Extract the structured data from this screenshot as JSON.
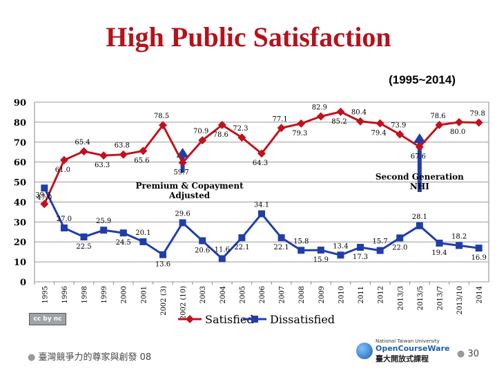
{
  "slide": {
    "title": "High Public Satisfaction",
    "subtitle": "(1995~2014)",
    "footer_text": "臺灣競爭力的尊家與創發 08",
    "page_number": "30",
    "logo_top": "National Taiwan University",
    "logo_mid": "OpenCourseWare",
    "logo_bottom": "臺大開放式課程",
    "license_badge": "cc by nc sa"
  },
  "colors": {
    "satisfied": "#c0121e",
    "dissatisfied": "#1f3ea8",
    "title": "#b5121b",
    "annotation": "#1f3ea8"
  },
  "chart_data": {
    "type": "line",
    "categories": [
      "1995",
      "1996",
      "1998",
      "1999",
      "2000",
      "2001",
      "2002 (3)",
      "2002 (10)",
      "2003",
      "2004",
      "2005",
      "2006",
      "2007",
      "2008",
      "2009",
      "2010",
      "2011",
      "2012",
      "2013/3",
      "2013/5",
      "2013/7",
      "2013/10",
      "2014"
    ],
    "series": [
      {
        "name": "Satisfied",
        "values": [
          39.0,
          61.0,
          65.4,
          63.3,
          63.8,
          65.6,
          78.5,
          59.7,
          70.9,
          78.6,
          72.3,
          64.3,
          77.1,
          79.3,
          82.9,
          85.2,
          80.4,
          79.4,
          73.9,
          67.6,
          78.6,
          80.0,
          79.8
        ],
        "label_text": [
          "39.0",
          "61.0",
          "65.4",
          "63.3",
          "63.8",
          "65.6",
          "78.5",
          "59.7",
          "70.9",
          "78.6",
          "72.3",
          "64.3",
          "77.1",
          "79.3",
          "82.9",
          "85.2",
          "80.4",
          "79.4",
          "73.9",
          "67.6",
          "78.6",
          "80.0",
          "79.8"
        ]
      },
      {
        "name": "Dissatisfied",
        "values": [
          47.0,
          27.0,
          22.5,
          25.9,
          24.5,
          20.1,
          13.6,
          29.6,
          20.6,
          11.6,
          22.1,
          34.1,
          22.1,
          15.8,
          15.9,
          13.4,
          17.3,
          15.7,
          22.0,
          28.1,
          19.4,
          18.2,
          16.9
        ],
        "label_text": [
          "47.0",
          "27.0",
          "22.5",
          "25.9",
          "24.5",
          "20.1",
          "13.6",
          "29.6",
          "20.6",
          "11.6",
          "22.1",
          "34.1",
          "22.1",
          "15.8",
          "15.9",
          "13.4",
          "17.3",
          "15.7",
          "22.0",
          "28.1",
          "19.4",
          "18.2",
          "16.9"
        ]
      }
    ],
    "ylim": [
      0,
      90
    ],
    "yticks": [
      "0",
      "10",
      "20",
      "30",
      "40",
      "50",
      "60",
      "70",
      "80",
      "90"
    ],
    "grid": true,
    "legend_position": "bottom",
    "annotations": [
      {
        "text": "Premium & Copayment Adjusted",
        "at_category": "2002 (10)"
      },
      {
        "text": "Second Generation NHI",
        "at_category": "2013/5"
      }
    ]
  }
}
